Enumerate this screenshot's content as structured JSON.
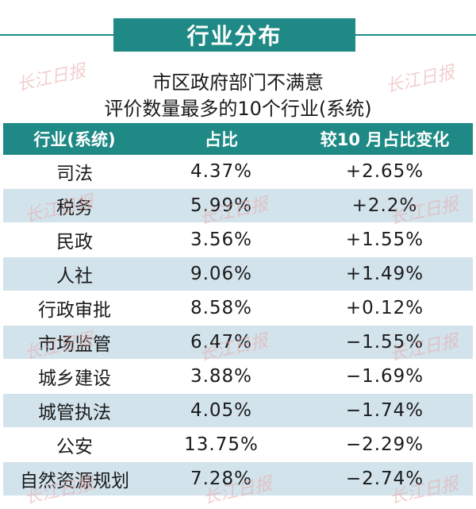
{
  "banner": "行业分布",
  "subtitle_line1": "市区政府部门不满意",
  "subtitle_line2": "评价数量最多的10个行业(系统)",
  "table": {
    "headers": [
      "行业(系统)",
      "占比",
      "较10 月占比变化"
    ],
    "rows": [
      {
        "industry": "司法",
        "share": "4.37%",
        "change": "+2.65%"
      },
      {
        "industry": "税务",
        "share": "5.99%",
        "change": "+2.2%"
      },
      {
        "industry": "民政",
        "share": "3.56%",
        "change": "+1.55%"
      },
      {
        "industry": "人社",
        "share": "9.06%",
        "change": "+1.49%"
      },
      {
        "industry": "行政审批",
        "share": "8.58%",
        "change": "+0.12%"
      },
      {
        "industry": "市场监管",
        "share": "6.47%",
        "change": "−1.55%"
      },
      {
        "industry": "城乡建设",
        "share": "3.88%",
        "change": "−1.69%"
      },
      {
        "industry": "城管执法",
        "share": "4.05%",
        "change": "−1.74%"
      },
      {
        "industry": "公安",
        "share": "13.75%",
        "change": "−2.29%"
      },
      {
        "industry": "自然资源规划",
        "share": "7.28%",
        "change": "−2.74%"
      }
    ]
  },
  "watermark": "长江日报",
  "colors": {
    "accent": "#1f8a85",
    "row_alt": "#d2e3ec"
  }
}
